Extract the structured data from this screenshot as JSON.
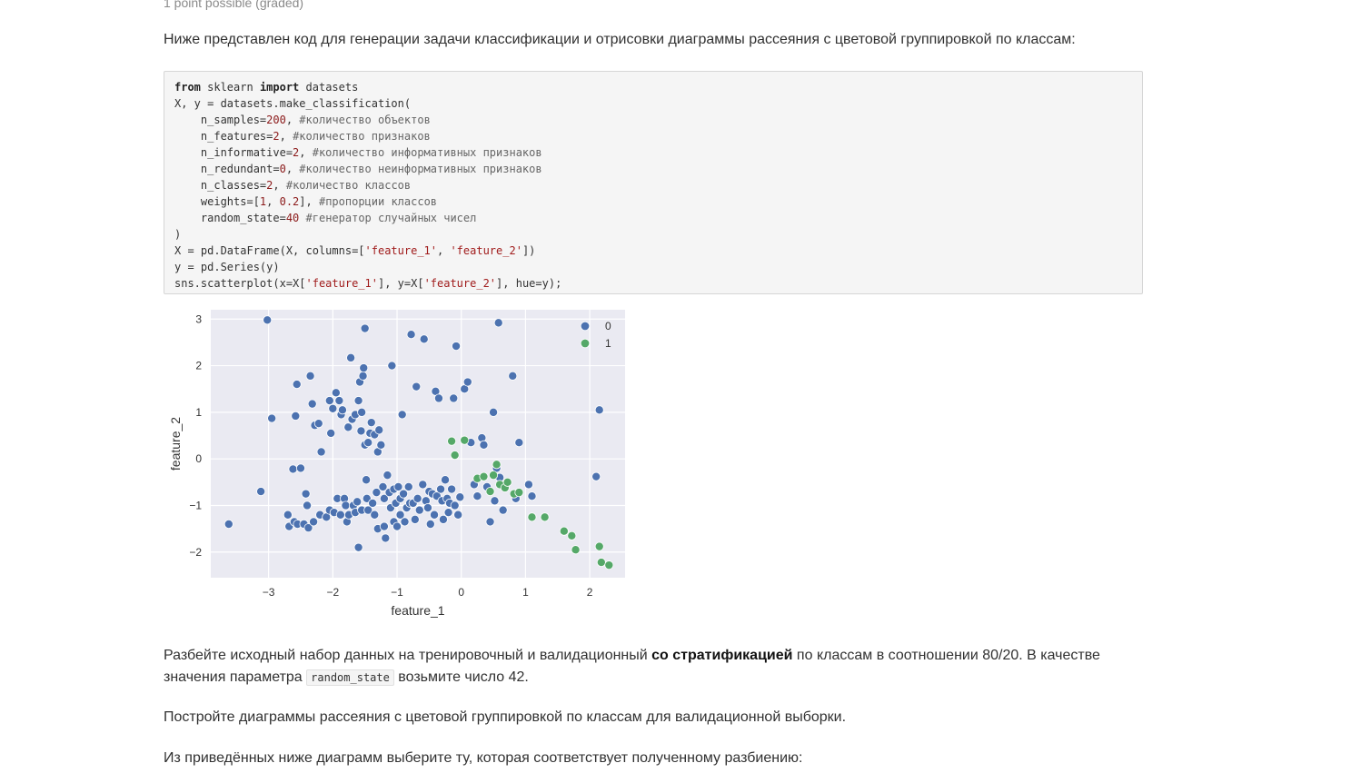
{
  "header": {
    "points": "1 point possible (graded)"
  },
  "intro": "Ниже представлен код для генерации задачи классификации и отрисовки диаграммы рассеяния с цветовой группировкой по классам:",
  "code": {
    "l1_kw1": "from",
    "l1_mid": " sklearn ",
    "l1_kw2": "import",
    "l1_end": " datasets",
    "l2": "X, y = datasets.make_classification(",
    "l3_a": "    n_samples=",
    "l3_num": "200",
    "l3_b": ", ",
    "l3_cmt": "#количество объектов",
    "l4_a": "    n_features=",
    "l4_num": "2",
    "l4_b": ", ",
    "l4_cmt": "#количество признаков",
    "l5_a": "    n_informative=",
    "l5_num": "2",
    "l5_b": ", ",
    "l5_cmt": "#количество информативных признаков",
    "l6_a": "    n_redundant=",
    "l6_num": "0",
    "l6_b": ", ",
    "l6_cmt": "#количество неинформативных признаков",
    "l7_a": "    n_classes=",
    "l7_num": "2",
    "l7_b": ", ",
    "l7_cmt": "#количество классов",
    "l8_a": "    weights=[",
    "l8_num1": "1",
    "l8_b": ", ",
    "l8_num2": "0.2",
    "l8_c": "], ",
    "l8_cmt": "#пропорции классов",
    "l9_a": "    random_state=",
    "l9_num": "40",
    "l9_b": " ",
    "l9_cmt": "#генератор случайных чисел",
    "l10": ")",
    "l11_a": "X = pd.DataFrame(X, columns=[",
    "l11_s1": "'feature_1'",
    "l11_b": ", ",
    "l11_s2": "'feature_2'",
    "l11_c": "])",
    "l12": "y = pd.Series(y)",
    "l13_a": "sns.scatterplot(x=X[",
    "l13_s1": "'feature_1'",
    "l13_b": "], y=X[",
    "l13_s2": "'feature_2'",
    "l13_c": "], hue=y);"
  },
  "chart_data": {
    "type": "scatter",
    "xlabel": "feature_1",
    "ylabel": "feature_2",
    "xlim": [
      -3.9,
      2.55
    ],
    "ylim": [
      -2.55,
      3.2
    ],
    "xticks": [
      -3,
      -2,
      -1,
      0,
      1,
      2
    ],
    "yticks": [
      -2,
      -1,
      0,
      1,
      2,
      3
    ],
    "xtick_labels": [
      "−3",
      "−2",
      "−1",
      "0",
      "1",
      "2"
    ],
    "ytick_labels": [
      "−2",
      "−1",
      "0",
      "1",
      "2",
      "3"
    ],
    "grid": true,
    "legend_position": "top-right",
    "colors": {
      "background": "#eaeaf2",
      "class0": "#4c72b0",
      "class1": "#55a868"
    },
    "series": [
      {
        "name": "0",
        "points": [
          [
            -3.62,
            -1.4
          ],
          [
            -3.12,
            -0.7
          ],
          [
            -3.02,
            2.98
          ],
          [
            -2.95,
            0.87
          ],
          [
            -2.7,
            -1.2
          ],
          [
            -2.68,
            -1.45
          ],
          [
            -2.62,
            -0.22
          ],
          [
            -2.6,
            -1.35
          ],
          [
            -2.58,
            0.92
          ],
          [
            -2.56,
            1.6
          ],
          [
            -2.55,
            -1.4
          ],
          [
            -2.5,
            -0.2
          ],
          [
            -2.45,
            -1.4
          ],
          [
            -2.42,
            -0.75
          ],
          [
            -2.4,
            -1.0
          ],
          [
            -2.38,
            -1.48
          ],
          [
            -2.35,
            1.78
          ],
          [
            -2.32,
            1.18
          ],
          [
            -2.3,
            -1.35
          ],
          [
            -2.28,
            0.72
          ],
          [
            -2.22,
            0.76
          ],
          [
            -2.2,
            -1.2
          ],
          [
            -2.18,
            0.15
          ],
          [
            -2.1,
            -1.25
          ],
          [
            -2.05,
            -1.1
          ],
          [
            -2.05,
            1.25
          ],
          [
            -2.03,
            0.55
          ],
          [
            -2.0,
            1.08
          ],
          [
            -1.98,
            -1.15
          ],
          [
            -1.95,
            1.42
          ],
          [
            -1.93,
            -0.85
          ],
          [
            -1.9,
            1.25
          ],
          [
            -1.88,
            -1.2
          ],
          [
            -1.87,
            0.95
          ],
          [
            -1.85,
            1.05
          ],
          [
            -1.82,
            -0.85
          ],
          [
            -1.8,
            -1.0
          ],
          [
            -1.78,
            -1.35
          ],
          [
            -1.76,
            0.68
          ],
          [
            -1.75,
            -1.2
          ],
          [
            -1.72,
            2.17
          ],
          [
            -1.7,
            0.85
          ],
          [
            -1.68,
            -1.0
          ],
          [
            -1.65,
            0.95
          ],
          [
            -1.65,
            -1.15
          ],
          [
            -1.62,
            -0.92
          ],
          [
            -1.6,
            1.25
          ],
          [
            -1.6,
            -1.9
          ],
          [
            -1.58,
            1.65
          ],
          [
            -1.56,
            0.6
          ],
          [
            -1.55,
            -1.1
          ],
          [
            -1.55,
            1.0
          ],
          [
            -1.53,
            1.78
          ],
          [
            -1.52,
            1.95
          ],
          [
            -1.5,
            2.8
          ],
          [
            -1.5,
            0.3
          ],
          [
            -1.48,
            -0.45
          ],
          [
            -1.47,
            -0.85
          ],
          [
            -1.45,
            0.35
          ],
          [
            -1.45,
            -1.1
          ],
          [
            -1.42,
            0.55
          ],
          [
            -1.4,
            0.78
          ],
          [
            -1.38,
            -0.95
          ],
          [
            -1.35,
            0.52
          ],
          [
            -1.35,
            -1.2
          ],
          [
            -1.32,
            -0.72
          ],
          [
            -1.3,
            0.15
          ],
          [
            -1.3,
            -1.5
          ],
          [
            -1.28,
            0.62
          ],
          [
            -1.25,
            0.3
          ],
          [
            -1.22,
            -0.6
          ],
          [
            -1.2,
            -0.85
          ],
          [
            -1.2,
            -1.45
          ],
          [
            -1.18,
            -1.7
          ],
          [
            -1.15,
            -0.35
          ],
          [
            -1.12,
            -0.72
          ],
          [
            -1.1,
            -1.05
          ],
          [
            -1.08,
            2.0
          ],
          [
            -1.05,
            -0.65
          ],
          [
            -1.05,
            -1.35
          ],
          [
            -1.02,
            -0.95
          ],
          [
            -1.0,
            -1.45
          ],
          [
            -0.98,
            -0.6
          ],
          [
            -0.95,
            -0.85
          ],
          [
            -0.95,
            -1.2
          ],
          [
            -0.92,
            0.95
          ],
          [
            -0.9,
            -0.75
          ],
          [
            -0.88,
            -1.35
          ],
          [
            -0.85,
            -1.05
          ],
          [
            -0.82,
            -0.6
          ],
          [
            -0.8,
            -0.95
          ],
          [
            -0.78,
            2.67
          ],
          [
            -0.75,
            -0.95
          ],
          [
            -0.72,
            -1.3
          ],
          [
            -0.7,
            1.55
          ],
          [
            -0.68,
            -0.85
          ],
          [
            -0.65,
            -1.1
          ],
          [
            -0.6,
            -0.55
          ],
          [
            -0.58,
            2.57
          ],
          [
            -0.55,
            -0.9
          ],
          [
            -0.52,
            -1.05
          ],
          [
            -0.5,
            -0.7
          ],
          [
            -0.48,
            -1.4
          ],
          [
            -0.45,
            -0.75
          ],
          [
            -0.42,
            -1.2
          ],
          [
            -0.4,
            1.45
          ],
          [
            -0.38,
            -0.8
          ],
          [
            -0.35,
            1.3
          ],
          [
            -0.32,
            -0.65
          ],
          [
            -0.3,
            -0.9
          ],
          [
            -0.28,
            -1.3
          ],
          [
            -0.25,
            -0.45
          ],
          [
            -0.22,
            -0.85
          ],
          [
            -0.2,
            -1.15
          ],
          [
            -0.18,
            -0.95
          ],
          [
            -0.15,
            -0.65
          ],
          [
            -0.12,
            1.3
          ],
          [
            -0.1,
            -1.0
          ],
          [
            -0.08,
            2.42
          ],
          [
            -0.05,
            -1.2
          ],
          [
            -0.02,
            -0.82
          ],
          [
            0.05,
            1.5
          ],
          [
            0.1,
            1.65
          ],
          [
            0.15,
            0.35
          ],
          [
            0.2,
            -0.55
          ],
          [
            0.25,
            -0.8
          ],
          [
            0.32,
            0.45
          ],
          [
            0.4,
            -0.6
          ],
          [
            0.45,
            -1.35
          ],
          [
            0.5,
            1.0
          ],
          [
            0.52,
            -0.9
          ],
          [
            0.55,
            -0.2
          ],
          [
            0.58,
            2.92
          ],
          [
            0.6,
            -0.4
          ],
          [
            0.65,
            -1.1
          ],
          [
            0.8,
            1.78
          ],
          [
            0.85,
            -0.85
          ],
          [
            0.9,
            0.35
          ],
          [
            1.05,
            -0.55
          ],
          [
            1.1,
            -0.8
          ],
          [
            2.1,
            -0.38
          ],
          [
            2.15,
            1.05
          ],
          [
            0.35,
            0.3
          ]
        ]
      },
      {
        "name": "1",
        "points": [
          [
            -0.15,
            0.38
          ],
          [
            -0.1,
            0.08
          ],
          [
            0.05,
            0.4
          ],
          [
            0.25,
            -0.42
          ],
          [
            0.35,
            -0.38
          ],
          [
            0.45,
            -0.7
          ],
          [
            0.5,
            -0.35
          ],
          [
            0.55,
            -0.12
          ],
          [
            0.6,
            -0.55
          ],
          [
            0.68,
            -0.62
          ],
          [
            0.72,
            -0.5
          ],
          [
            0.82,
            -0.75
          ],
          [
            0.9,
            -0.72
          ],
          [
            1.1,
            -1.25
          ],
          [
            1.3,
            -1.25
          ],
          [
            1.6,
            -1.55
          ],
          [
            1.72,
            -1.65
          ],
          [
            1.78,
            -1.95
          ],
          [
            2.15,
            -1.88
          ],
          [
            2.18,
            -2.22
          ],
          [
            2.3,
            -2.28
          ]
        ]
      }
    ]
  },
  "task": {
    "p1_a": "Разбейте исходный набор данных на тренировочный и валидационный ",
    "p1_b": "со стратификацией",
    "p1_c": " по классам в соотношении 80/20. В качестве значения параметра ",
    "p1_code": "random_state",
    "p1_d": " возьмите число 42.",
    "p2": "Постройте диаграммы рассеяния с цветовой группировкой по классам для валидационной выборки.",
    "p3": "Из приведённых ниже диаграмм выберите ту, которая соответствует полученному разбиению:"
  }
}
